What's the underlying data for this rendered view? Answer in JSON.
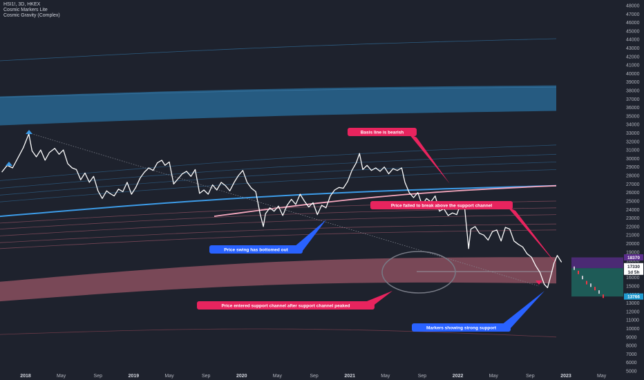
{
  "header": {
    "symbol_line": "HSI1!, 3D, HKEX",
    "indicator_1": "Cosmic Markers Lite",
    "indicator_2": "Cosmic Gravity (Complex)"
  },
  "colors": {
    "background": "#1e222d",
    "price_line": "#ffffff",
    "upper_band": "#2a6f9e",
    "lower_band": "#8a4f5f",
    "basis_line": "#f7a8be",
    "support_line": "#3d9ce8",
    "note_red": "#e8245e",
    "note_blue": "#2962ff",
    "forecast_purple": "#5b2d8c",
    "forecast_teal": "#1f6f66"
  },
  "chart_data": {
    "type": "line",
    "title": "HSI1!, 3D, HKEX",
    "ylim": [
      5000,
      48000
    ],
    "y_ticks": [
      5000,
      6000,
      7000,
      8000,
      9000,
      10000,
      11000,
      12000,
      13000,
      14000,
      15000,
      16000,
      17000,
      18000,
      19000,
      20000,
      21000,
      22000,
      23000,
      24000,
      25000,
      26000,
      27000,
      28000,
      29000,
      30000,
      31000,
      32000,
      33000,
      34000,
      35000,
      36000,
      37000,
      38000,
      39000,
      40000,
      41000,
      42000,
      43000,
      44000,
      45000,
      46000,
      47000,
      48000
    ],
    "x_ticks": [
      {
        "label": "2018",
        "t": 2018.0,
        "bold": true
      },
      {
        "label": "May",
        "t": 2018.33,
        "bold": false
      },
      {
        "label": "Sep",
        "t": 2018.67,
        "bold": false
      },
      {
        "label": "2019",
        "t": 2019.0,
        "bold": true
      },
      {
        "label": "May",
        "t": 2019.33,
        "bold": false
      },
      {
        "label": "Sep",
        "t": 2019.67,
        "bold": false
      },
      {
        "label": "2020",
        "t": 2020.0,
        "bold": true
      },
      {
        "label": "May",
        "t": 2020.33,
        "bold": false
      },
      {
        "label": "Sep",
        "t": 2020.67,
        "bold": false
      },
      {
        "label": "2021",
        "t": 2021.0,
        "bold": true
      },
      {
        "label": "May",
        "t": 2021.33,
        "bold": false
      },
      {
        "label": "Sep",
        "t": 2021.67,
        "bold": false
      },
      {
        "label": "2022",
        "t": 2022.0,
        "bold": true
      },
      {
        "label": "May",
        "t": 2022.33,
        "bold": false
      },
      {
        "label": "Sep",
        "t": 2022.67,
        "bold": false
      },
      {
        "label": "2023",
        "t": 2023.0,
        "bold": true
      },
      {
        "label": "May",
        "t": 2023.33,
        "bold": false
      }
    ],
    "price_series": {
      "name": "HSI1!",
      "points": [
        [
          2017.78,
          28400
        ],
        [
          2017.83,
          29200
        ],
        [
          2017.88,
          28900
        ],
        [
          2017.93,
          30100
        ],
        [
          2017.98,
          31300
        ],
        [
          2018.03,
          32900
        ],
        [
          2018.06,
          30900
        ],
        [
          2018.1,
          30200
        ],
        [
          2018.14,
          31000
        ],
        [
          2018.18,
          29800
        ],
        [
          2018.22,
          30700
        ],
        [
          2018.27,
          31200
        ],
        [
          2018.31,
          30500
        ],
        [
          2018.35,
          31000
        ],
        [
          2018.39,
          29400
        ],
        [
          2018.43,
          28900
        ],
        [
          2018.47,
          28700
        ],
        [
          2018.51,
          27500
        ],
        [
          2018.55,
          28300
        ],
        [
          2018.59,
          27200
        ],
        [
          2018.63,
          27900
        ],
        [
          2018.67,
          26200
        ],
        [
          2018.71,
          25300
        ],
        [
          2018.75,
          26200
        ],
        [
          2018.78,
          25900
        ],
        [
          2018.82,
          25600
        ],
        [
          2018.86,
          26400
        ],
        [
          2018.9,
          26100
        ],
        [
          2018.94,
          27200
        ],
        [
          2018.98,
          25800
        ],
        [
          2019.02,
          26600
        ],
        [
          2019.06,
          27700
        ],
        [
          2019.1,
          28400
        ],
        [
          2019.14,
          28900
        ],
        [
          2019.18,
          28600
        ],
        [
          2019.22,
          29500
        ],
        [
          2019.26,
          29800
        ],
        [
          2019.29,
          29200
        ],
        [
          2019.33,
          29600
        ],
        [
          2019.37,
          27000
        ],
        [
          2019.41,
          27600
        ],
        [
          2019.45,
          28200
        ],
        [
          2019.49,
          28500
        ],
        [
          2019.53,
          27900
        ],
        [
          2019.57,
          28700
        ],
        [
          2019.61,
          25900
        ],
        [
          2019.65,
          26300
        ],
        [
          2019.69,
          25800
        ],
        [
          2019.73,
          26900
        ],
        [
          2019.77,
          26300
        ],
        [
          2019.81,
          27200
        ],
        [
          2019.85,
          26800
        ],
        [
          2019.89,
          26200
        ],
        [
          2019.93,
          27200
        ],
        [
          2019.97,
          28000
        ],
        [
          2020.01,
          28600
        ],
        [
          2020.05,
          27200
        ],
        [
          2020.09,
          26500
        ],
        [
          2020.13,
          26100
        ],
        [
          2020.17,
          23500
        ],
        [
          2020.2,
          22000
        ],
        [
          2020.22,
          23500
        ],
        [
          2020.26,
          24200
        ],
        [
          2020.3,
          23800
        ],
        [
          2020.34,
          24400
        ],
        [
          2020.38,
          23300
        ],
        [
          2020.42,
          24500
        ],
        [
          2020.46,
          25200
        ],
        [
          2020.5,
          24600
        ],
        [
          2020.54,
          25800
        ],
        [
          2020.58,
          25000
        ],
        [
          2020.62,
          24300
        ],
        [
          2020.66,
          24800
        ],
        [
          2020.7,
          23400
        ],
        [
          2020.74,
          24500
        ],
        [
          2020.78,
          24200
        ],
        [
          2020.82,
          25600
        ],
        [
          2020.86,
          26300
        ],
        [
          2020.9,
          26600
        ],
        [
          2020.94,
          26500
        ],
        [
          2020.98,
          27300
        ],
        [
          2021.02,
          28600
        ],
        [
          2021.06,
          29500
        ],
        [
          2021.09,
          30600
        ],
        [
          2021.12,
          28700
        ],
        [
          2021.16,
          29200
        ],
        [
          2021.2,
          28600
        ],
        [
          2021.24,
          28900
        ],
        [
          2021.28,
          28500
        ],
        [
          2021.32,
          29000
        ],
        [
          2021.36,
          28200
        ],
        [
          2021.4,
          28800
        ],
        [
          2021.44,
          28600
        ],
        [
          2021.48,
          28900
        ],
        [
          2021.51,
          27200
        ],
        [
          2021.55,
          26000
        ],
        [
          2021.59,
          25400
        ],
        [
          2021.63,
          26000
        ],
        [
          2021.67,
          24500
        ],
        [
          2021.71,
          25300
        ],
        [
          2021.75,
          24900
        ],
        [
          2021.79,
          25600
        ],
        [
          2021.83,
          23800
        ],
        [
          2021.87,
          24100
        ],
        [
          2021.91,
          23300
        ],
        [
          2021.95,
          23600
        ],
        [
          2021.99,
          23400
        ],
        [
          2022.03,
          24800
        ],
        [
          2022.06,
          24600
        ],
        [
          2022.08,
          22000
        ],
        [
          2022.1,
          19400
        ],
        [
          2022.12,
          21700
        ],
        [
          2022.16,
          22000
        ],
        [
          2022.2,
          21200
        ],
        [
          2022.24,
          21000
        ],
        [
          2022.28,
          20400
        ],
        [
          2022.32,
          21400
        ],
        [
          2022.36,
          21600
        ],
        [
          2022.4,
          20300
        ],
        [
          2022.44,
          21900
        ],
        [
          2022.48,
          21700
        ],
        [
          2022.52,
          20300
        ],
        [
          2022.56,
          19900
        ],
        [
          2022.6,
          19600
        ],
        [
          2022.64,
          18800
        ],
        [
          2022.68,
          18400
        ],
        [
          2022.72,
          17400
        ],
        [
          2022.76,
          16600
        ],
        [
          2022.8,
          15200
        ],
        [
          2022.83,
          14800
        ],
        [
          2022.86,
          16200
        ],
        [
          2022.89,
          17700
        ],
        [
          2022.92,
          18600
        ],
        [
          2022.95,
          18000
        ],
        [
          2022.96,
          17800
        ]
      ]
    },
    "bands": [
      {
        "name": "upper_band_top",
        "start": 37300,
        "end": 38600
      },
      {
        "name": "upper_band_bottom",
        "start": 33900,
        "end": 35600
      },
      {
        "name": "lower_band_top",
        "start": 15500,
        "end": 18400
      },
      {
        "name": "lower_band_bottom",
        "start": 13200,
        "end": 15300
      }
    ],
    "price_labels": [
      {
        "text": "18370",
        "bg": "#5b2d8c",
        "fg": "#ffffff",
        "value": 18370
      },
      {
        "text": "17330",
        "bg": "#ffffff",
        "fg": "#1e222d",
        "value": 17330
      },
      {
        "text": "1d 5h",
        "bg": "#ffffff",
        "fg": "#1e222d",
        "value": 16500
      },
      {
        "text": "13766",
        "bg": "#1f9bd1",
        "fg": "#ffffff",
        "value": 13766
      }
    ],
    "annotations": [
      {
        "text": "Basis line is bearish",
        "color": "#e8245e"
      },
      {
        "text": "Price failed to break above the support channel",
        "color": "#e8245e"
      },
      {
        "text": "Price swing has bottomed out",
        "color": "#2962ff"
      },
      {
        "text": "Price entered support channel after support channel peaked",
        "color": "#e8245e"
      },
      {
        "text": "Markers showing strong support",
        "color": "#2962ff"
      }
    ]
  }
}
